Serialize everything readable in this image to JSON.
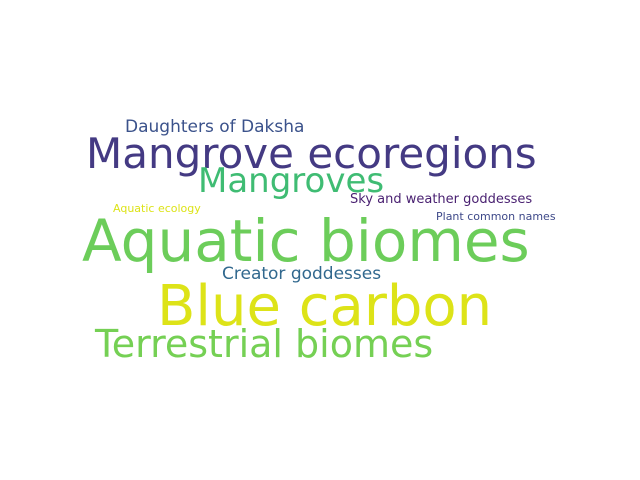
{
  "words": [
    {
      "text": "Daughters of Daksha",
      "color": "#3b528b"
    },
    {
      "text": "Mangrove ecoregions",
      "color": "#443a83"
    },
    {
      "text": "Mangroves",
      "color": "#3fbc73"
    },
    {
      "text": "Sky and weather goddesses",
      "color": "#481f70"
    },
    {
      "text": "Aquatic ecology",
      "color": "#dde318"
    },
    {
      "text": "Plant common names",
      "color": "#3e4989"
    },
    {
      "text": "Aquatic biomes",
      "color": "#6ccd5a"
    },
    {
      "text": "Creator goddesses",
      "color": "#31688e"
    },
    {
      "text": "Blue carbon",
      "color": "#dde318"
    },
    {
      "text": "Terrestrial biomes",
      "color": "#75d054"
    }
  ]
}
